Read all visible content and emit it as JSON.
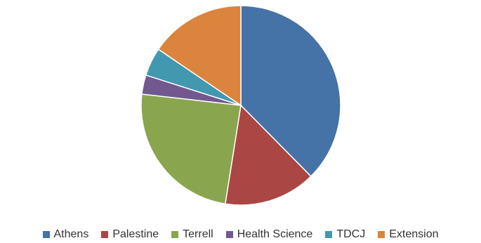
{
  "chart_data": {
    "type": "pie",
    "categories": [
      "Athens",
      "Palestine",
      "Terrell",
      "Health Science",
      "TDCJ",
      "Extension"
    ],
    "values": [
      37.6,
      14.9,
      24.3,
      3.1,
      4.6,
      15.5
    ],
    "colors": [
      "#4572A7",
      "#AA4643",
      "#89A54E",
      "#71588F",
      "#4198AF",
      "#DB843D"
    ],
    "title": "",
    "legend_position": "bottom"
  }
}
